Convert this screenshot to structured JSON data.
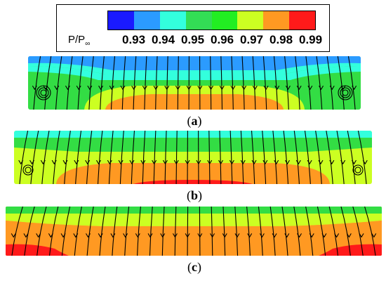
{
  "legend": {
    "title_main": "P/P",
    "title_sub": "∞",
    "colors": [
      "#1a1aff",
      "#2b9bff",
      "#33ffdd",
      "#33dd55",
      "#22ee22",
      "#ccff22",
      "#ff9922",
      "#ff1a1a"
    ],
    "values": [
      "0.93",
      "0.94",
      "0.95",
      "0.96",
      "0.97",
      "0.98",
      "0.99"
    ]
  },
  "panels": [
    {
      "label": "a",
      "caption_open": "(",
      "caption_close": ")"
    },
    {
      "label": "b",
      "caption_open": "(",
      "caption_close": ")"
    },
    {
      "label": "c",
      "caption_open": "(",
      "caption_close": ")"
    }
  ],
  "palette": {
    "blue": "#2b9bff",
    "cyan": "#33ffdd",
    "green": "#33dd44",
    "lime": "#ccff22",
    "orange": "#ff9922",
    "red": "#ff1a1a",
    "streamline": "#000000"
  }
}
